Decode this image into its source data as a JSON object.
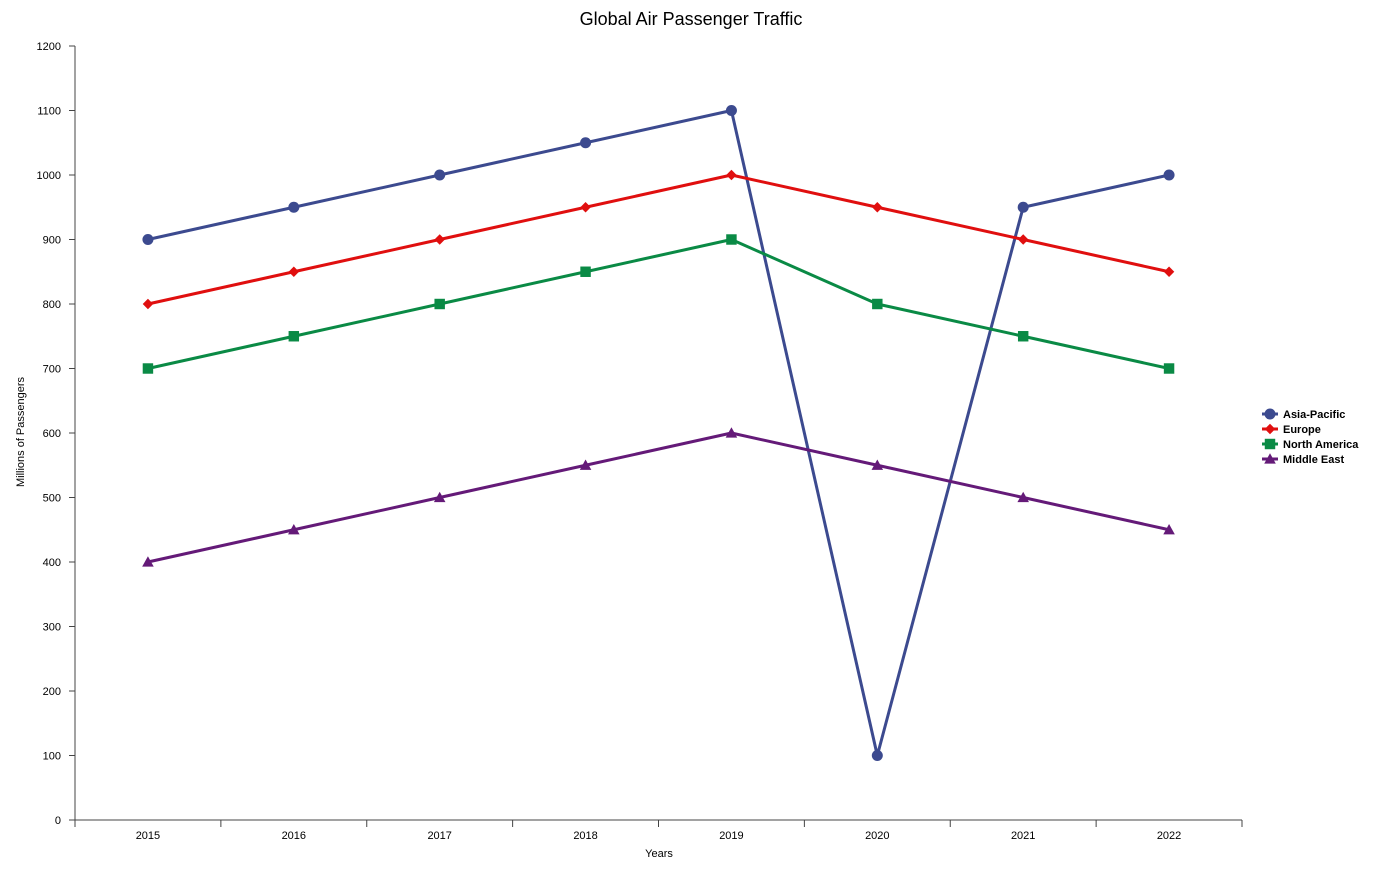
{
  "chart_data": {
    "type": "line",
    "title": "Global Air Passenger Traffic",
    "xlabel": "Years",
    "ylabel": "Millions of Passengers",
    "categories": [
      "2015",
      "2016",
      "2017",
      "2018",
      "2019",
      "2020",
      "2021",
      "2022"
    ],
    "ylim": [
      0,
      1200
    ],
    "yticks": [
      0,
      100,
      200,
      300,
      400,
      500,
      600,
      700,
      800,
      900,
      1000,
      1100,
      1200
    ],
    "grid": false,
    "legend_position": "right",
    "series": [
      {
        "name": "Asia-Pacific",
        "color": "#3c4a8f",
        "marker": "circle",
        "values": [
          900,
          950,
          1000,
          1050,
          1100,
          100,
          950,
          1000
        ]
      },
      {
        "name": "Europe",
        "color": "#e00f0f",
        "marker": "diamond",
        "values": [
          800,
          850,
          900,
          950,
          1000,
          950,
          900,
          850
        ]
      },
      {
        "name": "North America",
        "color": "#0a8a45",
        "marker": "square",
        "values": [
          700,
          750,
          800,
          850,
          900,
          800,
          750,
          700
        ]
      },
      {
        "name": "Middle East",
        "color": "#641a78",
        "marker": "triangle",
        "values": [
          400,
          450,
          500,
          550,
          600,
          550,
          500,
          450
        ]
      }
    ]
  }
}
